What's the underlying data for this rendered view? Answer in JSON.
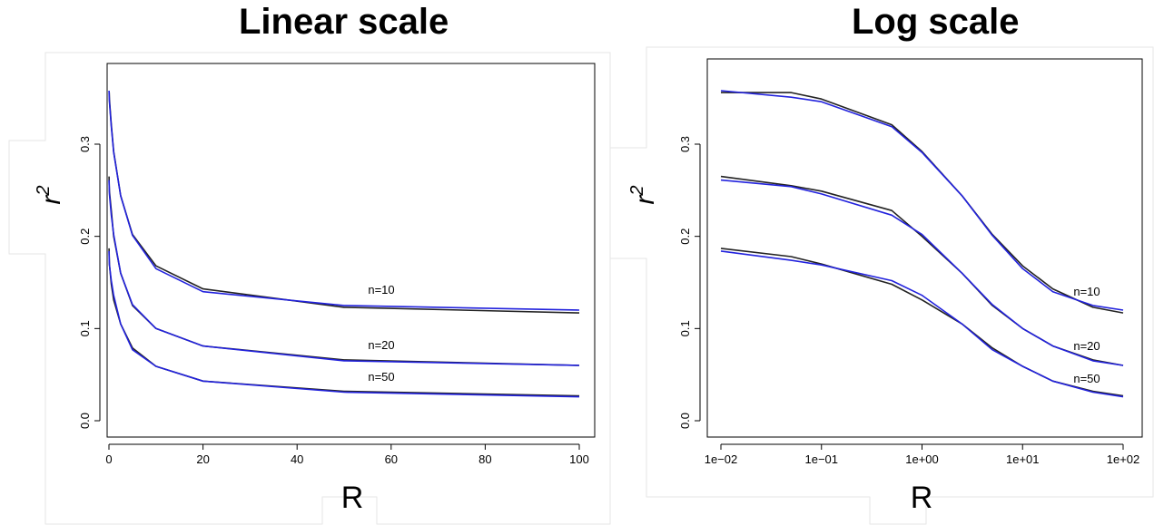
{
  "chart_data": [
    {
      "type": "line",
      "title": "Linear scale",
      "xlabel": "R",
      "ylabel": "r",
      "ylabel_superscript": "2",
      "xlim": [
        0,
        100
      ],
      "ylim": [
        0.0,
        0.36
      ],
      "xscale": "linear",
      "x_ticks": [
        {
          "value": 0,
          "label": "0"
        },
        {
          "value": 20,
          "label": "20"
        },
        {
          "value": 40,
          "label": "40"
        },
        {
          "value": 60,
          "label": "60"
        },
        {
          "value": 80,
          "label": "80"
        },
        {
          "value": 100,
          "label": "100"
        }
      ],
      "y_ticks": [
        {
          "value": 0.0,
          "label": "0.0"
        },
        {
          "value": 0.1,
          "label": "0.1"
        },
        {
          "value": 0.2,
          "label": "0.2"
        },
        {
          "value": 0.3,
          "label": "0.3"
        }
      ],
      "grid": false,
      "series": [
        {
          "group": "n=10",
          "color": "#222222",
          "x": [
            0.01,
            0.05,
            0.1,
            0.5,
            1,
            2.5,
            5,
            10,
            20,
            50,
            100
          ],
          "y": [
            0.356,
            0.356,
            0.349,
            0.321,
            0.292,
            0.244,
            0.202,
            0.168,
            0.143,
            0.123,
            0.117
          ]
        },
        {
          "group": "n=10",
          "color": "#2222dd",
          "x": [
            0.01,
            0.05,
            0.1,
            0.5,
            1,
            2.5,
            5,
            10,
            20,
            50,
            100
          ],
          "y": [
            0.358,
            0.351,
            0.346,
            0.319,
            0.291,
            0.244,
            0.201,
            0.165,
            0.14,
            0.125,
            0.12
          ]
        },
        {
          "group": "n=20",
          "color": "#222222",
          "x": [
            0.01,
            0.05,
            0.1,
            0.5,
            1,
            2.5,
            5,
            10,
            20,
            50,
            100
          ],
          "y": [
            0.265,
            0.255,
            0.249,
            0.228,
            0.2,
            0.16,
            0.125,
            0.1,
            0.081,
            0.066,
            0.06
          ]
        },
        {
          "group": "n=20",
          "color": "#2222dd",
          "x": [
            0.01,
            0.05,
            0.1,
            0.5,
            1,
            2.5,
            5,
            10,
            20,
            50,
            100
          ],
          "y": [
            0.261,
            0.254,
            0.246,
            0.223,
            0.202,
            0.16,
            0.126,
            0.1,
            0.081,
            0.065,
            0.06
          ]
        },
        {
          "group": "n=50",
          "color": "#222222",
          "x": [
            0.01,
            0.05,
            0.1,
            0.5,
            1,
            2.5,
            5,
            10,
            20,
            50,
            100
          ],
          "y": [
            0.187,
            0.178,
            0.17,
            0.148,
            0.131,
            0.105,
            0.079,
            0.059,
            0.043,
            0.032,
            0.027
          ]
        },
        {
          "group": "n=50",
          "color": "#2222dd",
          "x": [
            0.01,
            0.05,
            0.1,
            0.5,
            1,
            2.5,
            5,
            10,
            20,
            50,
            100
          ],
          "y": [
            0.184,
            0.174,
            0.169,
            0.152,
            0.136,
            0.105,
            0.077,
            0.059,
            0.043,
            0.031,
            0.026
          ]
        }
      ],
      "annotations": [
        {
          "text": "n=10",
          "x": 60,
          "y": 0.133
        },
        {
          "text": "n=20",
          "x": 60,
          "y": 0.073
        },
        {
          "text": "n=50",
          "x": 60,
          "y": 0.039
        }
      ]
    },
    {
      "type": "line",
      "title": "Log scale",
      "xlabel": "R",
      "ylabel": "r",
      "ylabel_superscript": "2",
      "xlim": [
        0.01,
        100
      ],
      "ylim": [
        0.0,
        0.36
      ],
      "xscale": "log",
      "x_ticks": [
        {
          "value": 0.01,
          "label": "1e−02"
        },
        {
          "value": 0.1,
          "label": "1e−01"
        },
        {
          "value": 1,
          "label": "1e+00"
        },
        {
          "value": 10,
          "label": "1e+01"
        },
        {
          "value": 100,
          "label": "1e+02"
        }
      ],
      "y_ticks": [
        {
          "value": 0.0,
          "label": "0.0"
        },
        {
          "value": 0.1,
          "label": "0.1"
        },
        {
          "value": 0.2,
          "label": "0.2"
        },
        {
          "value": 0.3,
          "label": "0.3"
        }
      ],
      "grid": false,
      "series": [
        {
          "group": "n=10",
          "color": "#222222",
          "x": [
            0.01,
            0.05,
            0.1,
            0.5,
            1,
            2.5,
            5,
            10,
            20,
            50,
            100
          ],
          "y": [
            0.356,
            0.356,
            0.349,
            0.321,
            0.292,
            0.244,
            0.202,
            0.168,
            0.143,
            0.123,
            0.117
          ]
        },
        {
          "group": "n=10",
          "color": "#2222dd",
          "x": [
            0.01,
            0.05,
            0.1,
            0.5,
            1,
            2.5,
            5,
            10,
            20,
            50,
            100
          ],
          "y": [
            0.358,
            0.351,
            0.346,
            0.319,
            0.291,
            0.244,
            0.201,
            0.165,
            0.14,
            0.125,
            0.12
          ]
        },
        {
          "group": "n=20",
          "color": "#222222",
          "x": [
            0.01,
            0.05,
            0.1,
            0.5,
            1,
            2.5,
            5,
            10,
            20,
            50,
            100
          ],
          "y": [
            0.265,
            0.255,
            0.249,
            0.228,
            0.2,
            0.16,
            0.125,
            0.1,
            0.081,
            0.066,
            0.06
          ]
        },
        {
          "group": "n=20",
          "color": "#2222dd",
          "x": [
            0.01,
            0.05,
            0.1,
            0.5,
            1,
            2.5,
            5,
            10,
            20,
            50,
            100
          ],
          "y": [
            0.261,
            0.254,
            0.246,
            0.223,
            0.202,
            0.16,
            0.126,
            0.1,
            0.081,
            0.065,
            0.06
          ]
        },
        {
          "group": "n=50",
          "color": "#222222",
          "x": [
            0.01,
            0.05,
            0.1,
            0.5,
            1,
            2.5,
            5,
            10,
            20,
            50,
            100
          ],
          "y": [
            0.187,
            0.178,
            0.17,
            0.148,
            0.131,
            0.105,
            0.079,
            0.059,
            0.043,
            0.032,
            0.027
          ]
        },
        {
          "group": "n=50",
          "color": "#2222dd",
          "x": [
            0.01,
            0.05,
            0.1,
            0.5,
            1,
            2.5,
            5,
            10,
            20,
            50,
            100
          ],
          "y": [
            0.184,
            0.174,
            0.169,
            0.152,
            0.136,
            0.105,
            0.077,
            0.059,
            0.043,
            0.031,
            0.026
          ]
        }
      ],
      "annotations": [
        {
          "text": "n=10",
          "x": 60,
          "y": 0.133
        },
        {
          "text": "n=20",
          "x": 60,
          "y": 0.073
        },
        {
          "text": "n=50",
          "x": 60,
          "y": 0.039
        }
      ]
    }
  ]
}
